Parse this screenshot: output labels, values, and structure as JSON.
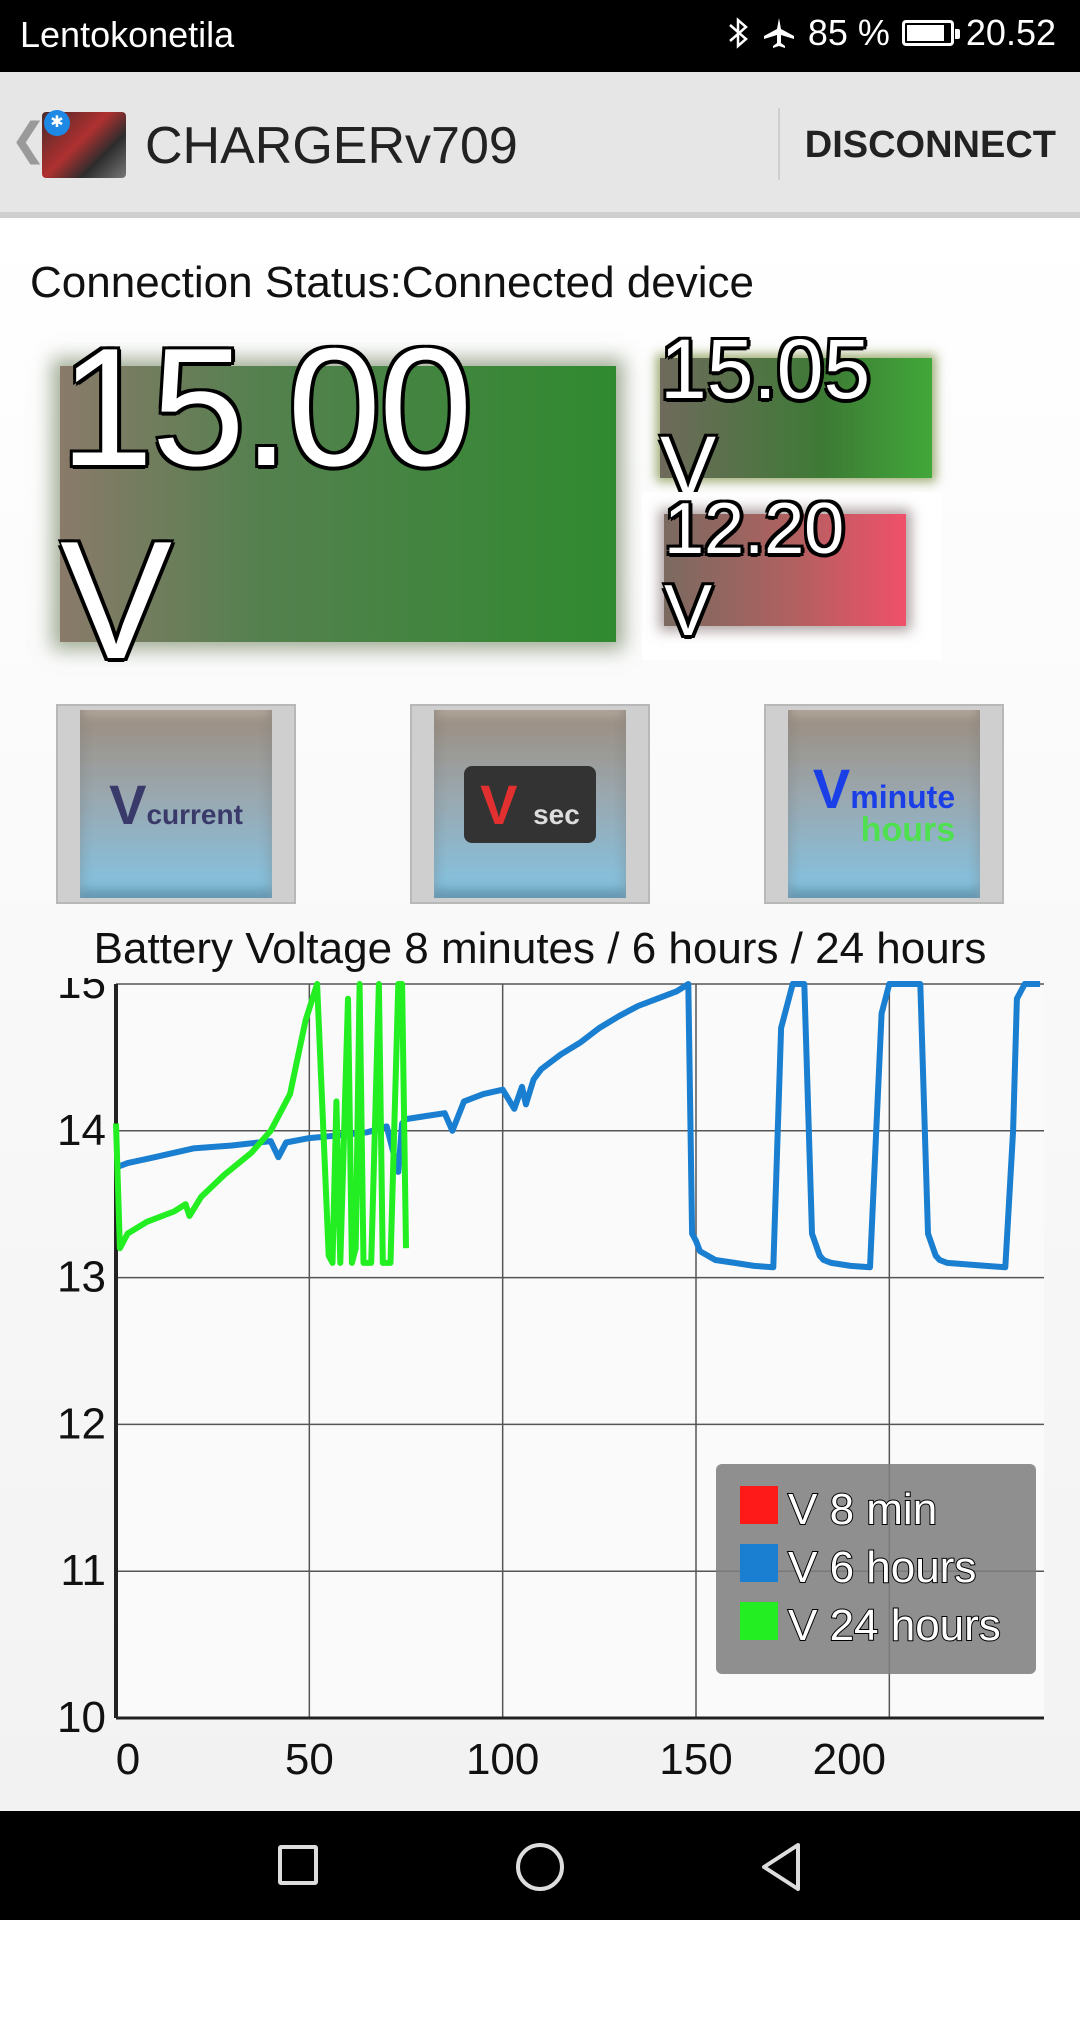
{
  "status_bar": {
    "carrier": "Lentokonetila",
    "icons": [
      "bluetooth-icon",
      "airplane-mode-icon"
    ],
    "battery_percent": "85 %",
    "battery_level": 0.85,
    "time": "20.52"
  },
  "app_bar": {
    "back_glyph": "❮",
    "title": "CHARGERv709",
    "action": "DISCONNECT"
  },
  "connection_status": "Connection Status:Connected device",
  "readings": {
    "current": "15.00 V",
    "max": "15.05 V",
    "min": "12.20 V"
  },
  "buttons": {
    "current": {
      "v": "V",
      "sub": "current"
    },
    "sec": {
      "v": "V",
      "sub": "sec"
    },
    "minute": {
      "v": "V",
      "sub": "minute",
      "sub2": "hours"
    }
  },
  "chart_title": "Battery Voltage 8 minutes / 6 hours / 24 hours",
  "chart_data": {
    "type": "line",
    "title": "Battery Voltage 8 minutes / 6 hours / 24 hours",
    "xlabel": "",
    "ylabel": "",
    "xlim": [
      0,
      240
    ],
    "ylim": [
      10,
      15
    ],
    "x_ticks": [
      0,
      50,
      100,
      150,
      200
    ],
    "y_ticks": [
      10,
      11,
      12,
      13,
      14,
      15
    ],
    "grid": true,
    "legend_position": "bottom-right",
    "series": [
      {
        "name": "V 8 min",
        "color": "#ff1a1a",
        "x": [],
        "y": []
      },
      {
        "name": "V 6 hours",
        "color": "#1a7fd0",
        "x": [
          0,
          3,
          10,
          20,
          30,
          40,
          42,
          44,
          50,
          58,
          65,
          70,
          73,
          74,
          75,
          80,
          85,
          87,
          90,
          95,
          100,
          103,
          105,
          106,
          108,
          110,
          115,
          120,
          125,
          130,
          135,
          140,
          145,
          148,
          149,
          150,
          151,
          155,
          160,
          165,
          170,
          172,
          175,
          178,
          180,
          182,
          183,
          185,
          190,
          195,
          198,
          200,
          202,
          205,
          208,
          210,
          212,
          213,
          215,
          220,
          225,
          230,
          232,
          233,
          235,
          239
        ],
        "y": [
          13.75,
          13.78,
          13.82,
          13.88,
          13.9,
          13.93,
          13.82,
          13.92,
          13.95,
          13.97,
          13.99,
          14.03,
          13.72,
          14.05,
          14.08,
          14.1,
          14.12,
          14.0,
          14.2,
          14.25,
          14.28,
          14.15,
          14.3,
          14.18,
          14.35,
          14.42,
          14.52,
          14.6,
          14.7,
          14.78,
          14.85,
          14.9,
          14.95,
          15.0,
          13.3,
          13.25,
          13.18,
          13.12,
          13.1,
          13.08,
          13.07,
          14.7,
          15.0,
          15.0,
          13.3,
          13.15,
          13.12,
          13.1,
          13.08,
          13.07,
          14.8,
          15.0,
          15.0,
          15.0,
          15.0,
          13.3,
          13.15,
          13.12,
          13.1,
          13.09,
          13.08,
          13.07,
          14.0,
          14.9,
          15.0,
          15.0
        ]
      },
      {
        "name": "V 24 hours",
        "color": "#22ee22",
        "x": [
          0,
          1,
          3,
          8,
          15,
          18,
          19,
          22,
          28,
          35,
          40,
          45,
          49,
          52,
          55,
          56,
          57,
          58,
          60,
          61,
          62,
          63,
          64,
          66,
          68,
          69,
          70,
          71,
          73,
          74,
          75
        ],
        "y": [
          14.05,
          13.2,
          13.3,
          13.38,
          13.45,
          13.5,
          13.42,
          13.55,
          13.7,
          13.85,
          14.0,
          14.25,
          14.75,
          15.0,
          13.15,
          13.1,
          14.2,
          13.1,
          14.9,
          13.1,
          13.2,
          15.0,
          13.1,
          13.1,
          15.0,
          13.1,
          13.1,
          13.1,
          15.0,
          15.0,
          13.2
        ]
      }
    ]
  },
  "navigation": [
    "recents-square-icon",
    "home-circle-icon",
    "back-triangle-icon"
  ]
}
